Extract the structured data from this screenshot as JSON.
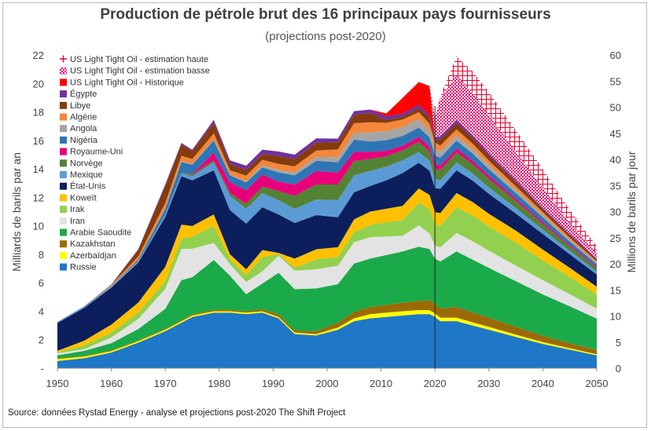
{
  "title": "Production de pétrole brut des 16 principaux pays fournisseurs",
  "subtitle": "(projections post-2020)",
  "source": "Source: données Rystad Energy - analyse et projections post-2020 The Shift Project",
  "colors": {
    "US Light Tight Oil - estimation haute": "#e8002c",
    "US Light Tight Oil - estimation basse": "#f7a1c8",
    "US Light Tight Oil - Historique": "#ff0000",
    "Égypte": "#7030a0",
    "Libye": "#843c0c",
    "Algérie": "#f4873a",
    "Angola": "#a5a5a5",
    "Nigéria": "#2e75b6",
    "Royaume-Uni": "#e8007a",
    "Norvège": "#548235",
    "Mexique": "#5b9bd5",
    "État-Unis": "#0c1f5c",
    "Koweït": "#ffc000",
    "Irak": "#92d050",
    "Iran": "#e3e3e3",
    "Arabie Saoudite": "#1aaa4a",
    "Kazakhstan": "#9c6a05",
    "Azerbaïdjan": "#ffff00",
    "Russie": "#1f77c8"
  },
  "chart_data": {
    "type": "area",
    "title": "Production de pétrole brut des 16 principaux pays fournisseurs",
    "subtitle": "(projections post-2020)",
    "ylabel": "Milliards de barils par an",
    "y2label": "Millions de barils par jour",
    "xlim": [
      1950,
      2050
    ],
    "ylim": [
      0,
      22
    ],
    "y2lim": [
      0,
      60
    ],
    "xticks": [
      "1950",
      "1960",
      "1970",
      "1980",
      "1990",
      "2000",
      "2010",
      "2020",
      "2030",
      "2040",
      "2050"
    ],
    "yticks": [
      "-",
      "2",
      "4",
      "6",
      "8",
      "10",
      "12",
      "14",
      "16",
      "18",
      "20",
      "22"
    ],
    "y2ticks": [
      "0",
      "5",
      "10",
      "15",
      "20",
      "25",
      "30",
      "35",
      "40",
      "45",
      "50",
      "55",
      "60"
    ],
    "x": [
      1950,
      1955,
      1960,
      1965,
      1970,
      1973,
      1975,
      1979,
      1982,
      1985,
      1988,
      1991,
      1994,
      1998,
      2002,
      2005,
      2008,
      2011,
      2014,
      2017,
      2019,
      2020,
      2021,
      2024,
      2027,
      2030,
      2035,
      2040,
      2045,
      2050
    ],
    "series": [
      {
        "name": "Russie",
        "values": [
          0.5,
          0.7,
          1.1,
          1.8,
          2.6,
          3.2,
          3.6,
          3.9,
          3.9,
          3.8,
          3.9,
          3.5,
          2.4,
          2.3,
          2.7,
          3.3,
          3.5,
          3.6,
          3.7,
          3.8,
          3.8,
          3.6,
          3.3,
          3.3,
          3.0,
          2.7,
          2.2,
          1.7,
          1.3,
          0.9
        ]
      },
      {
        "name": "Azerbaïdjan",
        "values": [
          0.15,
          0.12,
          0.1,
          0.1,
          0.1,
          0.1,
          0.1,
          0.1,
          0.1,
          0.1,
          0.1,
          0.1,
          0.1,
          0.1,
          0.15,
          0.2,
          0.3,
          0.3,
          0.3,
          0.28,
          0.27,
          0.25,
          0.25,
          0.25,
          0.22,
          0.2,
          0.16,
          0.13,
          0.1,
          0.08
        ]
      },
      {
        "name": "Kazakhstan",
        "values": [
          0.05,
          0.05,
          0.06,
          0.06,
          0.07,
          0.08,
          0.09,
          0.1,
          0.1,
          0.1,
          0.15,
          0.2,
          0.15,
          0.2,
          0.35,
          0.45,
          0.5,
          0.55,
          0.6,
          0.65,
          0.7,
          0.65,
          0.65,
          0.75,
          0.7,
          0.65,
          0.55,
          0.45,
          0.35,
          0.3
        ]
      },
      {
        "name": "Arabie Saoudite",
        "values": [
          0.2,
          0.35,
          0.5,
          0.8,
          1.4,
          2.8,
          2.6,
          3.5,
          2.4,
          1.2,
          1.8,
          2.9,
          2.9,
          3.0,
          2.7,
          3.4,
          3.4,
          3.5,
          3.6,
          3.8,
          3.6,
          3.2,
          3.3,
          3.9,
          3.7,
          3.5,
          3.2,
          2.9,
          2.6,
          2.2
        ]
      },
      {
        "name": "Iran",
        "values": [
          0.15,
          0.12,
          0.4,
          0.7,
          1.4,
          2.2,
          2.0,
          1.2,
          0.8,
          0.85,
          0.85,
          1.2,
          1.3,
          1.35,
          1.3,
          1.5,
          1.5,
          1.3,
          1.1,
          1.5,
          1.1,
          0.9,
          1.0,
          1.3,
          1.3,
          1.2,
          1.1,
          1.0,
          0.85,
          0.7
        ]
      },
      {
        "name": "Irak",
        "values": [
          0.05,
          0.25,
          0.35,
          0.45,
          0.55,
          0.7,
          0.85,
          1.2,
          0.35,
          0.5,
          1.0,
          0.1,
          0.2,
          0.7,
          0.6,
          0.7,
          0.85,
          1.0,
          1.1,
          1.6,
          1.7,
          1.5,
          1.5,
          1.8,
          1.8,
          1.7,
          1.6,
          1.4,
          1.2,
          1.0
        ]
      },
      {
        "name": "Koweït",
        "values": [
          0.12,
          0.35,
          0.55,
          0.7,
          1.0,
          1.0,
          0.75,
          0.8,
          0.35,
          0.4,
          0.5,
          0.1,
          0.65,
          0.7,
          0.7,
          0.9,
          0.95,
          0.95,
          1.0,
          1.0,
          1.0,
          0.85,
          0.9,
          1.0,
          0.95,
          0.9,
          0.85,
          0.75,
          0.65,
          0.55
        ]
      },
      {
        "name": "État-Unis",
        "values": [
          1.95,
          2.3,
          2.6,
          2.8,
          3.5,
          3.4,
          3.2,
          3.1,
          3.1,
          3.2,
          3.0,
          2.7,
          2.5,
          2.4,
          2.1,
          1.9,
          1.8,
          2.0,
          2.3,
          1.8,
          1.7,
          1.7,
          1.7,
          1.6,
          1.5,
          1.4,
          1.2,
          1.1,
          0.95,
          0.85
        ]
      },
      {
        "name": "Mexique",
        "values": [
          0.07,
          0.09,
          0.1,
          0.12,
          0.17,
          0.2,
          0.3,
          0.55,
          1.0,
          1.05,
          1.0,
          1.0,
          1.0,
          1.1,
          1.2,
          1.2,
          1.05,
          0.95,
          0.9,
          0.75,
          0.7,
          0.65,
          0.6,
          0.55,
          0.5,
          0.45,
          0.38,
          0.3,
          0.25,
          0.2
        ]
      },
      {
        "name": "Norvège",
        "values": [
          0,
          0,
          0,
          0,
          0.01,
          0.05,
          0.1,
          0.15,
          0.2,
          0.35,
          0.45,
          0.65,
          0.9,
          1.05,
          1.1,
          1.0,
          0.85,
          0.72,
          0.7,
          0.72,
          0.65,
          0.7,
          0.72,
          0.7,
          0.65,
          0.6,
          0.5,
          0.4,
          0.3,
          0.25
        ]
      },
      {
        "name": "Royaume-Uni",
        "values": [
          0,
          0,
          0,
          0,
          0,
          0,
          0.05,
          0.55,
          0.75,
          0.95,
          0.85,
          0.65,
          0.8,
          0.95,
          0.85,
          0.65,
          0.5,
          0.4,
          0.32,
          0.35,
          0.35,
          0.35,
          0.32,
          0.28,
          0.25,
          0.22,
          0.18,
          0.14,
          0.1,
          0.08
        ]
      },
      {
        "name": "Nigéria",
        "values": [
          0,
          0,
          0.01,
          0.1,
          0.4,
          0.75,
          0.65,
          0.85,
          0.5,
          0.55,
          0.5,
          0.65,
          0.65,
          0.72,
          0.72,
          0.85,
          0.72,
          0.75,
          0.7,
          0.65,
          0.65,
          0.6,
          0.55,
          0.55,
          0.5,
          0.45,
          0.38,
          0.32,
          0.25,
          0.2
        ]
      },
      {
        "name": "Angola",
        "values": [
          0,
          0,
          0,
          0.01,
          0.04,
          0.06,
          0.05,
          0.05,
          0.05,
          0.09,
          0.15,
          0.18,
          0.2,
          0.27,
          0.35,
          0.45,
          0.65,
          0.62,
          0.62,
          0.6,
          0.5,
          0.48,
          0.43,
          0.37,
          0.32,
          0.28,
          0.22,
          0.17,
          0.12,
          0.1
        ]
      },
      {
        "name": "Algérie",
        "values": [
          0,
          0,
          0.07,
          0.22,
          0.35,
          0.38,
          0.35,
          0.44,
          0.3,
          0.38,
          0.38,
          0.42,
          0.43,
          0.45,
          0.55,
          0.7,
          0.7,
          0.6,
          0.52,
          0.48,
          0.45,
          0.42,
          0.42,
          0.42,
          0.38,
          0.33,
          0.26,
          0.2,
          0.15,
          0.11
        ]
      },
      {
        "name": "Libye",
        "values": [
          0,
          0,
          0.01,
          0.45,
          1.2,
          0.8,
          0.55,
          0.75,
          0.45,
          0.4,
          0.4,
          0.55,
          0.5,
          0.55,
          0.5,
          0.6,
          0.65,
          0.2,
          0.2,
          0.3,
          0.45,
          0.15,
          0.45,
          0.45,
          0.4,
          0.35,
          0.3,
          0.22,
          0.17,
          0.12
        ]
      },
      {
        "name": "Égypte",
        "values": [
          0.01,
          0.02,
          0.03,
          0.05,
          0.12,
          0.1,
          0.1,
          0.2,
          0.25,
          0.3,
          0.32,
          0.32,
          0.32,
          0.3,
          0.25,
          0.25,
          0.25,
          0.25,
          0.22,
          0.22,
          0.2,
          0.2,
          0.2,
          0.18,
          0.17,
          0.16,
          0.13,
          0.1,
          0.08,
          0.07
        ]
      },
      {
        "name": "US Light Tight Oil - Historique",
        "values": [
          0,
          0,
          0,
          0,
          0,
          0,
          0,
          0,
          0,
          0,
          0,
          0,
          0,
          0,
          0,
          0,
          0,
          0.2,
          1.1,
          1.6,
          2.0,
          0,
          0,
          0,
          0,
          0,
          0,
          0,
          0,
          0
        ]
      },
      {
        "name": "US Light Tight Oil - estimation basse",
        "values": [
          0,
          0,
          0,
          0,
          0,
          0,
          0,
          0,
          0,
          0,
          0,
          0,
          0,
          0,
          0,
          0,
          0,
          0,
          0,
          0,
          0,
          1.4,
          2.6,
          3.2,
          3.0,
          2.7,
          2.0,
          1.4,
          0.8,
          0.35
        ]
      },
      {
        "name": "US Light Tight Oil - estimation haute",
        "values": [
          0,
          0,
          0,
          0,
          0,
          0,
          0,
          0,
          0,
          0,
          0,
          0,
          0,
          0,
          0,
          0,
          0,
          0,
          0,
          0,
          0,
          0,
          0.2,
          1.3,
          1.5,
          1.6,
          1.5,
          1.3,
          0.9,
          0.5
        ]
      }
    ],
    "legend": [
      "US Light Tight Oil - estimation haute",
      "US Light Tight Oil - estimation basse",
      "US Light Tight Oil - Historique",
      "Égypte",
      "Libye",
      "Algérie",
      "Angola",
      "Nigéria",
      "Royaume-Uni",
      "Norvège",
      "Mexique",
      "État-Unis",
      "Koweït",
      "Irak",
      "Iran",
      "Arabie Saoudite",
      "Kazakhstan",
      "Azerbaïdjan",
      "Russie"
    ],
    "legend_position": "top-left",
    "vline_x": 2020,
    "grid": false
  }
}
